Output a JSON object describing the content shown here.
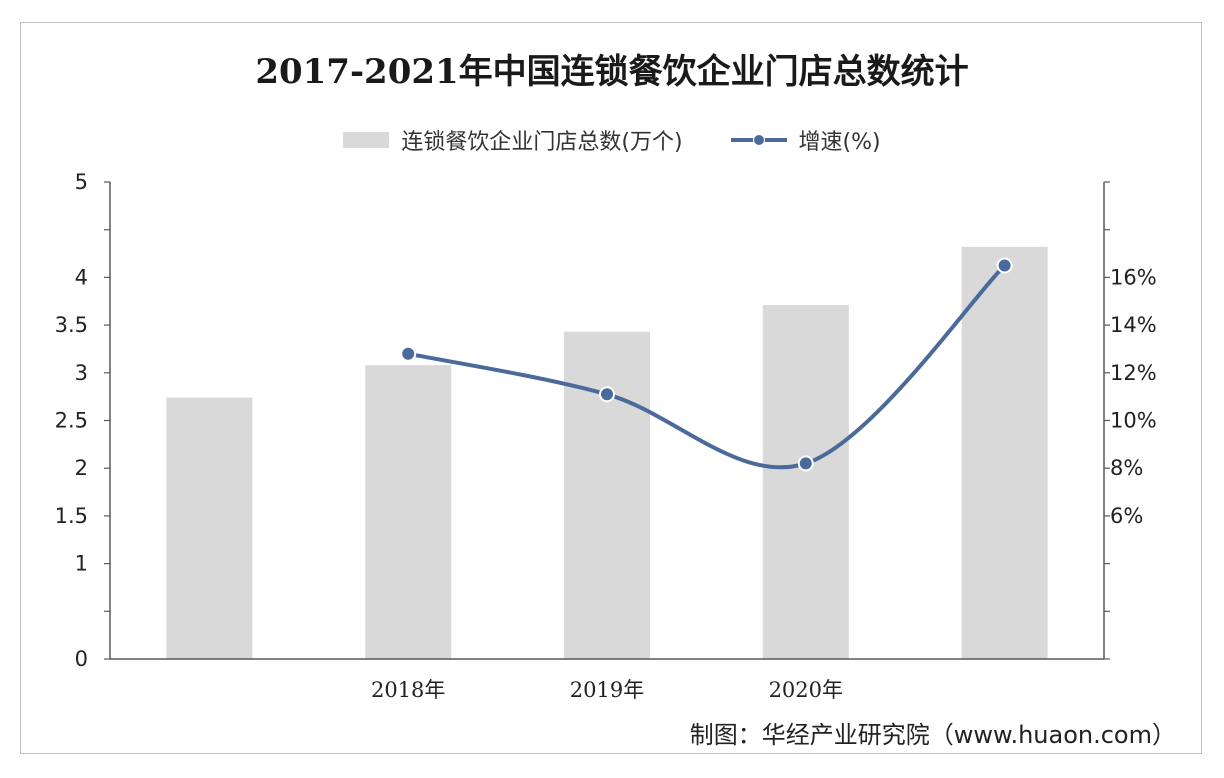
{
  "title": "2017-2021年中国连锁餐饮企业门店总数统计",
  "legend": {
    "bar_label": "连锁餐饮企业门店总数(万个)",
    "line_label": "增速(%)"
  },
  "source": "制图：华经产业研究院（www.huaon.com）",
  "colors": {
    "bar": "#d9d9d9",
    "line": "#4a6a9b"
  },
  "chart_data": {
    "type": "bar",
    "categories": [
      "",
      "2018年",
      "2019年",
      "2020年",
      ""
    ],
    "series": [
      {
        "name": "连锁餐饮企业门店总数(万个)",
        "type": "bar",
        "axis": "left",
        "values": [
          2.74,
          3.08,
          3.43,
          3.71,
          4.32
        ]
      },
      {
        "name": "增速(%)",
        "type": "line",
        "axis": "right",
        "values": [
          null,
          12.8,
          11.1,
          8.2,
          16.5
        ]
      }
    ],
    "y_left": {
      "range": [
        0,
        5
      ],
      "ticks": [
        "0",
        "",
        "1",
        "1.5",
        "2",
        "2.5",
        "3",
        "3.5",
        "4",
        "",
        "5"
      ]
    },
    "y_right": {
      "range": [
        0,
        20
      ],
      "ticks": [
        "",
        "",
        "",
        "6%",
        "8%",
        "10%",
        "12%",
        "14%",
        "16%",
        "",
        ""
      ]
    },
    "grid": false,
    "legend_position": "top"
  }
}
